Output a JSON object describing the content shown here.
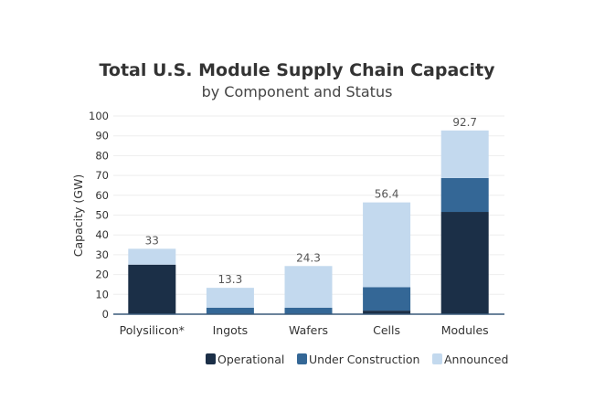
{
  "chart_data": {
    "type": "bar",
    "stacked": true,
    "title": "Total U.S. Module Supply Chain Capacity",
    "subtitle": "by Component and Status",
    "xlabel": "",
    "ylabel": "Capacity (GW)",
    "ylim": [
      0,
      100
    ],
    "yticks": [
      0,
      10,
      20,
      30,
      40,
      50,
      60,
      70,
      80,
      90,
      100
    ],
    "grid": true,
    "legend_position": "bottom-right",
    "categories": [
      "Polysilicon*",
      "Ingots",
      "Wafers",
      "Cells",
      "Modules"
    ],
    "series": [
      {
        "name": "Operational",
        "color": "#1b2f47",
        "values": [
          25,
          0,
          0,
          1.8,
          51.6
        ]
      },
      {
        "name": "Under Construction",
        "color": "#346796",
        "values": [
          0,
          3.3,
          3.3,
          11.8,
          17.1
        ]
      },
      {
        "name": "Announced",
        "color": "#c3d9ee",
        "values": [
          8,
          10,
          21,
          42.8,
          24.0
        ]
      }
    ],
    "totals": [
      33,
      13.3,
      24.3,
      56.4,
      92.7
    ],
    "total_labels": [
      "33",
      "13.3",
      "24.3",
      "56.4",
      "92.7"
    ]
  }
}
